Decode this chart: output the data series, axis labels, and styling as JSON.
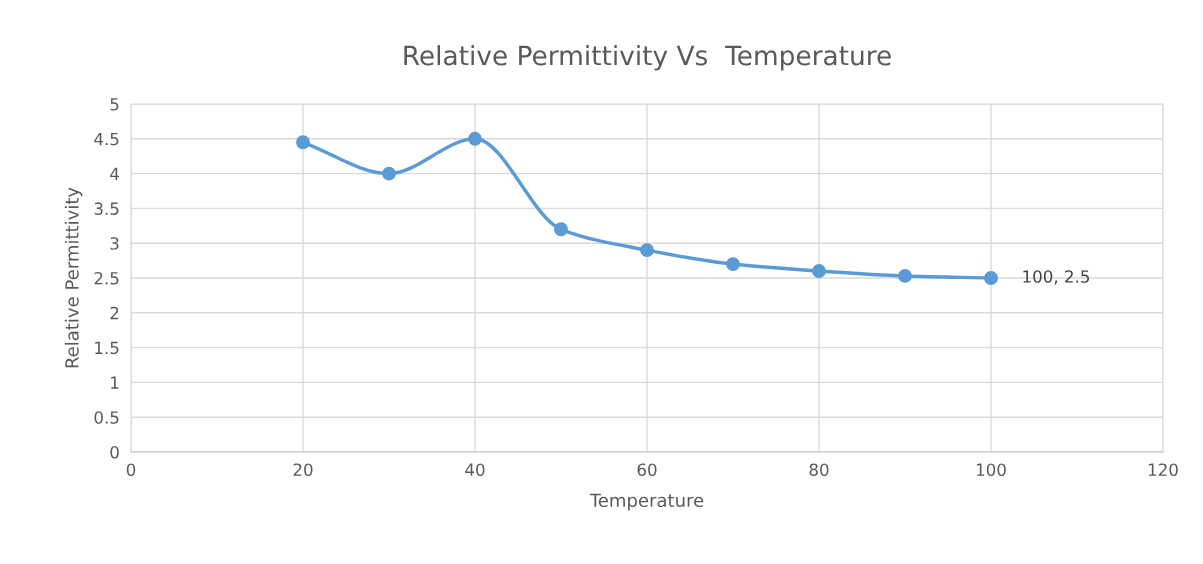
{
  "chart_data": {
    "type": "line",
    "title": "Relative Permittivity Vs  Temperature",
    "xlabel": "Temperature",
    "ylabel": "Relative Permittivity",
    "x": [
      20,
      30,
      40,
      50,
      60,
      70,
      80,
      90,
      100
    ],
    "series": [
      {
        "color": "#5b9bd5",
        "values": [
          4.45,
          4.0,
          4.5,
          3.2,
          2.9,
          2.7,
          2.6,
          2.53,
          2.5
        ]
      }
    ],
    "xlim": [
      0,
      120
    ],
    "xticks": [
      0,
      20,
      40,
      60,
      80,
      100,
      120
    ],
    "ylim": [
      0,
      5
    ],
    "yticks": [
      0,
      {
        "value": 0.5,
        "label": "0.5"
      },
      1,
      {
        "value": 1.5,
        "label": "1.5"
      },
      2,
      {
        "value": 2.5,
        "label": "2.5"
      },
      3,
      {
        "value": 3.5,
        "label": "3.5"
      },
      4,
      {
        "value": 4.5,
        "label": "4.5"
      },
      5
    ],
    "grid": true,
    "marker": "circle",
    "line_style": "solid",
    "annotations": [
      {
        "text": "100, 2.5",
        "x": 100,
        "y": 2.5
      }
    ]
  }
}
